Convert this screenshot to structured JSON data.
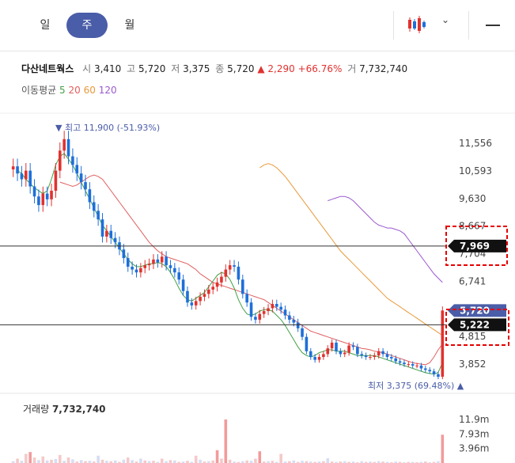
{
  "tabs": [
    {
      "label": "일",
      "active": false
    },
    {
      "label": "주",
      "active": true
    },
    {
      "label": "월",
      "active": false
    }
  ],
  "toolbar": {
    "chart_type_icon": "candlestick-icon",
    "dropdown_icon": "chevron-down-icon",
    "menu_icon": "menu-icon"
  },
  "summary": {
    "name": "다산네트웍스",
    "open_label": "시",
    "open": "3,410",
    "high_label": "고",
    "high": "5,720",
    "low_label": "저",
    "low": "3,375",
    "close_label": "종",
    "close": "5,720",
    "change": "▲ 2,290",
    "change_pct": "+66.76%",
    "volume_label": "거",
    "volume": "7,732,740"
  },
  "ma": {
    "label": "이동평균",
    "p5": "5",
    "p20": "20",
    "p60": "60",
    "p120": "120"
  },
  "volume_panel": {
    "label": "거래량",
    "value": "7,732,740"
  },
  "colors": {
    "up": "#e0322f",
    "down": "#1e6fd9",
    "ma5": "#43a047",
    "ma20": "#e06060",
    "ma60": "#e8993a",
    "ma120": "#9b59d0",
    "accent": "#4a5da8"
  },
  "chart_data": {
    "type": "candlestick",
    "y_ticks": [
      "11,556",
      "10,593",
      "9,630",
      "8,667",
      "7,704",
      "6,741",
      "5,778",
      "4,815",
      "3,852"
    ],
    "y_tick_values": [
      11556,
      10593,
      9630,
      8667,
      7704,
      6741,
      5778,
      4815,
      3852
    ],
    "price_markers": [
      {
        "label": "7,969",
        "value": 7969
      },
      {
        "label": "5,720",
        "value": 5720
      },
      {
        "label": "5,222",
        "value": 5222
      }
    ],
    "max_annotation": {
      "label": "▼ 최고 11,900 (-51.93%)",
      "value": 11900
    },
    "min_annotation": {
      "label": "최저 3,375 (69.48%) ▲",
      "value": 3375
    },
    "volume_ticks": [
      "11.9m",
      "7.93m",
      "3.96m"
    ],
    "volume_tick_values": [
      11900000,
      7930000,
      3960000
    ],
    "close_series": [
      10750,
      10500,
      10300,
      10600,
      10050,
      9700,
      9400,
      9800,
      9600,
      9900,
      10600,
      11300,
      11700,
      11100,
      10800,
      10500,
      10200,
      9950,
      9500,
      9200,
      8900,
      8300,
      8500,
      8250,
      8100,
      7850,
      7550,
      7250,
      7150,
      7050,
      7200,
      7300,
      7350,
      7500,
      7400,
      7600,
      7300,
      7200,
      7050,
      6800,
      6400,
      6000,
      5900,
      6050,
      6200,
      6300,
      6450,
      6550,
      6700,
      6900,
      7150,
      7300,
      7250,
      6800,
      6300,
      6000,
      5500,
      5400,
      5600,
      5700,
      5800,
      5950,
      5850,
      5750,
      5550,
      5400,
      5300,
      5100,
      4800,
      4300,
      4100,
      4000,
      4100,
      4200,
      4400,
      4600,
      4300,
      4200,
      4250,
      4500,
      4450,
      4200,
      4150,
      4100,
      4100,
      4150,
      4300,
      4200,
      4100,
      4050,
      3950,
      3900,
      3850,
      3850,
      3800,
      3800,
      3700,
      3650,
      3600,
      3500,
      3410,
      5720
    ],
    "ma5": [
      10600,
      10500,
      10300,
      10150,
      10000,
      9900,
      9800,
      9900,
      10300,
      10800,
      11100,
      11200,
      11000,
      10800,
      10500,
      10200,
      9900,
      9600,
      9300,
      9000,
      8700,
      8500,
      8300,
      8100,
      7900,
      7700,
      7500,
      7350,
      7250,
      7250,
      7300,
      7350,
      7350,
      7400,
      7350,
      7250,
      7050,
      6800,
      6500,
      6250,
      6100,
      6050,
      6150,
      6250,
      6350,
      6550,
      6750,
      6950,
      7050,
      7000,
      6800,
      6500,
      6100,
      5800,
      5600,
      5550,
      5600,
      5700,
      5750,
      5750,
      5700,
      5550,
      5400,
      5200,
      4950,
      4700,
      4450,
      4250,
      4150,
      4100,
      4150,
      4250,
      4300,
      4350,
      4350,
      4300,
      4300,
      4300,
      4250,
      4200,
      4150,
      4150,
      4150,
      4150,
      4150,
      4100,
      4050,
      4000,
      3950,
      3900,
      3850,
      3800,
      3750,
      3700,
      3650,
      3600,
      3550,
      3520,
      3500,
      3560,
      3900
    ],
    "ma20": [
      10200,
      10150,
      10100,
      10050,
      10100,
      10200,
      10300,
      10400,
      10450,
      10400,
      10300,
      10100,
      9900,
      9700,
      9500,
      9300,
      9100,
      8900,
      8700,
      8500,
      8300,
      8100,
      7950,
      7800,
      7700,
      7600,
      7550,
      7500,
      7450,
      7400,
      7350,
      7250,
      7150,
      7000,
      6900,
      6800,
      6700,
      6650,
      6600,
      6550,
      6500,
      6450,
      6400,
      6350,
      6300,
      6250,
      6200,
      6150,
      6100,
      6000,
      5900,
      5800,
      5700,
      5600,
      5500,
      5400,
      5300,
      5200,
      5100,
      5000,
      4950,
      4900,
      4850,
      4800,
      4750,
      4700,
      4650,
      4600,
      4550,
      4500,
      4450,
      4400,
      4380,
      4350,
      4300,
      4280,
      4250,
      4200,
      4150,
      4100,
      4050,
      4000,
      3950,
      3900,
      3870,
      3850,
      3830,
      3900,
      4100,
      4350,
      4550
    ],
    "ma60": [
      10700,
      10800,
      10850,
      10800,
      10700,
      10550,
      10400,
      10200,
      10000,
      9800,
      9600,
      9400,
      9200,
      9000,
      8800,
      8600,
      8400,
      8200,
      8000,
      7800,
      7650,
      7500,
      7350,
      7200,
      7050,
      6900,
      6750,
      6600,
      6450,
      6300,
      6150,
      6050,
      5950,
      5850,
      5750,
      5650,
      5550,
      5450,
      5350,
      5250,
      5150,
      5050,
      4950,
      4850
    ],
    "ma120": [
      9550,
      9600,
      9650,
      9700,
      9700,
      9650,
      9550,
      9400,
      9250,
      9100,
      8950,
      8800,
      8700,
      8650,
      8600,
      8600,
      8550,
      8500,
      8400,
      8200,
      8000,
      7800,
      7600,
      7400,
      7200,
      7000,
      6850,
      6700
    ],
    "volume_values": [
      500000,
      1200000,
      600000,
      2500000,
      3000000,
      1500000,
      800000,
      1800000,
      700000,
      900000,
      1100000,
      2200000,
      600000,
      1500000,
      1000000,
      400000,
      800000,
      500000,
      600000,
      400000,
      2000000,
      900000,
      600000,
      500000,
      700000,
      300000,
      900000,
      1500000,
      800000,
      400000,
      1200000,
      700000,
      500000,
      600000,
      300000,
      1200000,
      500000,
      800000,
      700000,
      300000,
      400000,
      600000,
      300000,
      2000000,
      900000,
      400000,
      500000,
      700000,
      3500000,
      1200000,
      11900000,
      900000,
      400000,
      300000,
      500000,
      700000,
      600000,
      1200000,
      3200000,
      400000,
      500000,
      600000,
      300000,
      2500000,
      400000,
      500000,
      700000,
      300000,
      600000,
      500000,
      400000,
      300000,
      400000,
      500000,
      1300000,
      400000,
      300000,
      400000,
      500000,
      300000,
      400000,
      200000,
      500000,
      300000,
      400000,
      300000,
      500000,
      400000,
      300000,
      200000,
      400000,
      300000,
      200000,
      300000,
      300000,
      200000,
      300000,
      400000,
      200000,
      300000,
      500000,
      7732740
    ]
  }
}
